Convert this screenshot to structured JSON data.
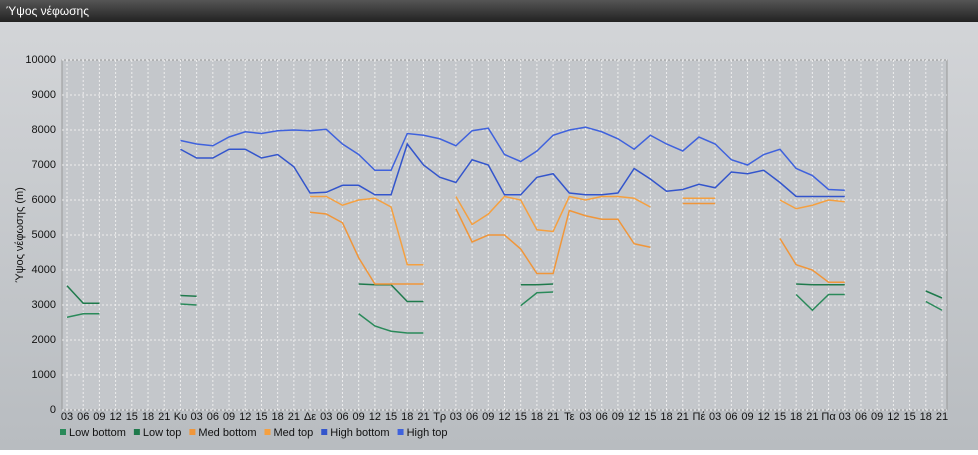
{
  "header": {
    "title": "Ύψος νέφωσης"
  },
  "chart_data": {
    "type": "line",
    "y_label": "Ύψος νέφωσης (m)",
    "categories": [
      "03",
      "06",
      "09",
      "12",
      "15",
      "18",
      "21",
      "Κυ",
      "03",
      "06",
      "09",
      "12",
      "15",
      "18",
      "21",
      "Δε",
      "03",
      "06",
      "09",
      "12",
      "15",
      "18",
      "21",
      "Τρ",
      "03",
      "06",
      "09",
      "12",
      "15",
      "18",
      "21",
      "Τε",
      "03",
      "06",
      "09",
      "12",
      "15",
      "18",
      "21",
      "Πέ",
      "03",
      "06",
      "09",
      "12",
      "15",
      "18",
      "21",
      "Πα",
      "03",
      "06",
      "09",
      "12",
      "15",
      "18",
      "21"
    ],
    "ylim": [
      0,
      10000
    ],
    "yticks": [
      0,
      1000,
      2000,
      3000,
      4000,
      5000,
      6000,
      7000,
      8000,
      9000,
      10000
    ],
    "grid": true,
    "series": [
      {
        "name": "Low bottom",
        "color": "#2a8a5a",
        "values": [
          2650,
          2750,
          2750,
          null,
          null,
          null,
          null,
          3030,
          3000,
          null,
          null,
          null,
          null,
          null,
          null,
          null,
          null,
          null,
          2750,
          2400,
          2250,
          2200,
          2200,
          null,
          null,
          null,
          null,
          null,
          2980,
          3350,
          3370,
          null,
          null,
          null,
          null,
          null,
          null,
          null,
          null,
          null,
          null,
          null,
          null,
          null,
          null,
          3300,
          2850,
          3300,
          3300,
          null,
          null,
          null,
          null,
          3100,
          2850
        ]
      },
      {
        "name": "Low top",
        "color": "#1f7a4c",
        "values": [
          3550,
          3050,
          3050,
          null,
          null,
          null,
          null,
          3270,
          3250,
          null,
          null,
          null,
          null,
          null,
          null,
          null,
          null,
          null,
          3600,
          3580,
          3580,
          3100,
          3100,
          null,
          null,
          null,
          null,
          null,
          3580,
          3580,
          3600,
          null,
          null,
          null,
          null,
          null,
          null,
          null,
          null,
          null,
          null,
          null,
          null,
          null,
          null,
          3600,
          3580,
          3580,
          3580,
          null,
          null,
          null,
          null,
          3400,
          3200
        ]
      },
      {
        "name": "Med bottom",
        "color": "#f0963a",
        "values": [
          null,
          null,
          null,
          null,
          null,
          null,
          null,
          null,
          null,
          null,
          null,
          null,
          null,
          null,
          null,
          5650,
          5600,
          5350,
          4350,
          3600,
          3600,
          3600,
          3600,
          null,
          5750,
          4800,
          5000,
          5000,
          4600,
          3900,
          3900,
          5700,
          5550,
          5450,
          5450,
          4750,
          4650,
          null,
          5900,
          5900,
          5900,
          null,
          null,
          null,
          4900,
          4150,
          4000,
          3650,
          3650,
          null,
          null,
          null,
          null,
          null,
          null
        ]
      },
      {
        "name": "Med top",
        "color": "#f5a040",
        "values": [
          null,
          null,
          null,
          null,
          null,
          null,
          null,
          null,
          null,
          null,
          null,
          null,
          null,
          null,
          null,
          6100,
          6100,
          5850,
          6000,
          6050,
          5800,
          4150,
          4150,
          null,
          6100,
          5300,
          5600,
          6100,
          6000,
          5150,
          5100,
          6100,
          6000,
          6100,
          6100,
          6050,
          5800,
          null,
          6050,
          6050,
          6050,
          null,
          null,
          null,
          6000,
          5750,
          5850,
          6000,
          5950,
          null,
          null,
          null,
          null,
          null,
          null
        ]
      },
      {
        "name": "High bottom",
        "color": "#3355cc",
        "values": [
          null,
          null,
          null,
          null,
          null,
          null,
          null,
          7450,
          7200,
          7200,
          7450,
          7450,
          7200,
          7300,
          6950,
          6200,
          6220,
          6420,
          6420,
          6150,
          6150,
          7600,
          7000,
          6650,
          6500,
          7150,
          7000,
          6150,
          6150,
          6650,
          6750,
          6200,
          6150,
          6150,
          6200,
          6900,
          6600,
          6250,
          6300,
          6450,
          6350,
          6800,
          6750,
          6850,
          6500,
          6100,
          6100,
          6100,
          6100,
          null,
          null,
          null,
          null,
          null,
          null
        ]
      },
      {
        "name": "High top",
        "color": "#3f62dd",
        "values": [
          null,
          null,
          null,
          null,
          null,
          null,
          null,
          7700,
          7600,
          7550,
          7800,
          7950,
          7900,
          7980,
          8000,
          7980,
          8020,
          7600,
          7300,
          6850,
          6850,
          7900,
          7850,
          7750,
          7550,
          7980,
          8050,
          7300,
          7100,
          7400,
          7850,
          8000,
          8080,
          7950,
          7750,
          7450,
          7850,
          7600,
          7400,
          7800,
          7600,
          7150,
          7000,
          7300,
          7450,
          6900,
          6700,
          6300,
          6280,
          null,
          null,
          null,
          null,
          null,
          null
        ]
      }
    ]
  }
}
